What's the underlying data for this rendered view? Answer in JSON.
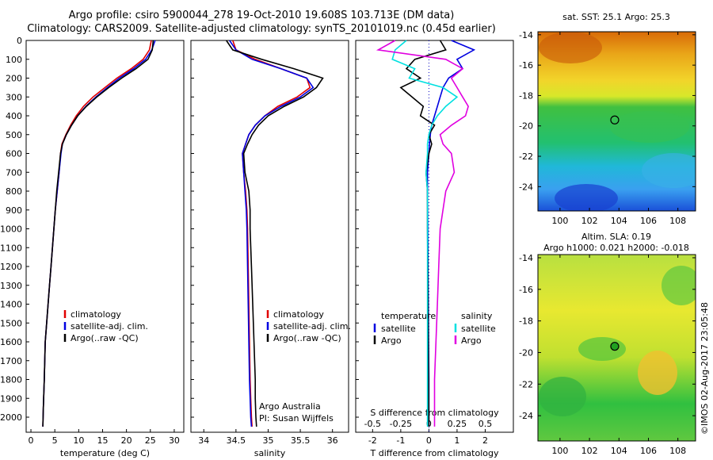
{
  "header": {
    "line1": "Argo profile: csiro 5900044_278 19-Oct-2010 19.608S 103.713E (DM data)",
    "line2": "Climatology: CARS2009. Satellite-adjusted climatology: synTS_20101019.nc (0.45d earlier)"
  },
  "colors": {
    "climatology": "#e00000",
    "satellite": "#0000e0",
    "argo": "#000000",
    "sat_salinity": "#00e0e0",
    "argo_salinity": "#e000e0"
  },
  "chart_data": [
    {
      "type": "line",
      "id": "temperature",
      "xlabel": "temperature (deg C)",
      "ylabel": "",
      "xlim": [
        -1,
        32
      ],
      "ylim": [
        2080,
        0
      ],
      "xticks": [
        0,
        5,
        10,
        15,
        20,
        25,
        30
      ],
      "yticks": [
        0,
        100,
        200,
        300,
        400,
        500,
        600,
        700,
        800,
        900,
        1000,
        1100,
        1200,
        1300,
        1400,
        1500,
        1600,
        1700,
        1800,
        1900,
        2000
      ],
      "series": [
        {
          "name": "climatology",
          "color": "#e00000",
          "x": [
            25.2,
            24.8,
            23.5,
            21,
            18,
            15.5,
            13,
            11,
            9.5,
            8.3,
            7.3,
            6.5,
            6.2,
            5.9,
            5.5,
            5.1,
            4.8,
            4.5,
            4.2,
            3.9,
            3.6,
            3.3,
            3.0,
            2.8,
            2.6,
            2.5
          ],
          "y": [
            0,
            50,
            100,
            150,
            200,
            250,
            300,
            350,
            400,
            450,
            500,
            550,
            600,
            700,
            800,
            900,
            1000,
            1100,
            1200,
            1300,
            1400,
            1500,
            1600,
            1800,
            1950,
            2050
          ]
        },
        {
          "name": "satellite-adj. clim.",
          "color": "#0000e0",
          "x": [
            26,
            25.3,
            24,
            21.5,
            18.5,
            16,
            13.6,
            11.5,
            9.8,
            8.5,
            7.4,
            6.6,
            6.3,
            5.9,
            5.5,
            5.1,
            4.8,
            4.5,
            4.2,
            3.9,
            3.6,
            3.3,
            3.0,
            2.8,
            2.6,
            2.5
          ],
          "y": [
            0,
            50,
            100,
            150,
            200,
            250,
            300,
            350,
            400,
            450,
            500,
            550,
            600,
            700,
            800,
            900,
            1000,
            1100,
            1200,
            1300,
            1400,
            1500,
            1600,
            1800,
            1950,
            2050
          ]
        },
        {
          "name": "Argo(..raw -QC)",
          "color": "#000000",
          "x": [
            25.6,
            25.4,
            24.5,
            22,
            19,
            16.3,
            13.8,
            11.6,
            9.8,
            8.5,
            7.4,
            6.6,
            6.2,
            5.8,
            5.4,
            5.1,
            4.8,
            4.5,
            4.2,
            3.9,
            3.6,
            3.3,
            3.0,
            2.8,
            2.6,
            2.5
          ],
          "y": [
            0,
            50,
            100,
            150,
            200,
            250,
            300,
            350,
            400,
            450,
            500,
            550,
            600,
            700,
            800,
            900,
            1000,
            1100,
            1200,
            1300,
            1400,
            1500,
            1600,
            1800,
            1950,
            2050
          ]
        }
      ],
      "legend": [
        "climatology",
        "satellite-adj. clim.",
        "Argo(..raw -QC)"
      ]
    },
    {
      "type": "line",
      "id": "salinity",
      "xlabel": "salinity",
      "xlim": [
        33.8,
        36.25
      ],
      "ylim": [
        2080,
        0
      ],
      "xticks": [
        34,
        34.5,
        35,
        35.5,
        36
      ],
      "series": [
        {
          "name": "climatology",
          "color": "#e00000",
          "x": [
            34.45,
            34.5,
            34.8,
            35.2,
            35.6,
            35.65,
            35.45,
            35.15,
            34.95,
            34.8,
            34.7,
            34.65,
            34.6,
            34.62,
            34.65,
            34.67,
            34.68,
            34.69,
            34.7,
            34.71,
            34.72,
            34.73,
            34.74,
            34.75
          ],
          "y": [
            0,
            50,
            100,
            150,
            200,
            250,
            300,
            350,
            400,
            450,
            500,
            550,
            600,
            700,
            800,
            900,
            1000,
            1200,
            1400,
            1600,
            1800,
            1900,
            2000,
            2050
          ]
        },
        {
          "name": "satellite-adj. clim.",
          "color": "#0000e0",
          "x": [
            34.4,
            34.5,
            34.75,
            35.2,
            35.6,
            35.7,
            35.5,
            35.2,
            34.95,
            34.8,
            34.7,
            34.65,
            34.6,
            34.62,
            34.64,
            34.66,
            34.67,
            34.68,
            34.69,
            34.7,
            34.71,
            34.72,
            34.73,
            34.74
          ],
          "y": [
            0,
            50,
            100,
            150,
            200,
            250,
            300,
            350,
            400,
            450,
            500,
            550,
            600,
            700,
            800,
            900,
            1000,
            1200,
            1400,
            1600,
            1800,
            1900,
            2000,
            2050
          ]
        },
        {
          "name": "Argo(..raw -QC)",
          "color": "#000000",
          "x": [
            34.35,
            34.45,
            34.9,
            35.4,
            35.85,
            35.75,
            35.55,
            35.25,
            35.0,
            34.85,
            34.75,
            34.68,
            34.62,
            34.64,
            34.7,
            34.72,
            34.72,
            34.74,
            34.76,
            34.78,
            34.8,
            34.8,
            34.81,
            34.82
          ],
          "y": [
            0,
            50,
            100,
            150,
            200,
            250,
            300,
            350,
            400,
            450,
            500,
            550,
            600,
            700,
            800,
            900,
            1000,
            1200,
            1400,
            1600,
            1800,
            1900,
            2000,
            2050
          ]
        }
      ],
      "legend": [
        "climatology",
        "satellite-adj. clim.",
        "Argo(..raw -QC)"
      ],
      "annotation": [
        "Argo Australia",
        "PI: Susan Wijffels"
      ]
    },
    {
      "type": "line",
      "id": "difference",
      "xlabel": "T difference from climatology",
      "xlabel_top": "S difference from climatology",
      "xlim": [
        -2.6,
        3.0
      ],
      "ylim": [
        2080,
        0
      ],
      "xticks": [
        -2,
        -1,
        0,
        1,
        2
      ],
      "s_ticks": [
        {
          "label": "-0.5",
          "t": -2
        },
        {
          "label": "-0.25",
          "t": -1
        },
        {
          "label": "0",
          "t": 0
        },
        {
          "label": "0.25",
          "t": 1
        },
        {
          "label": "0.5",
          "t": 2
        }
      ],
      "series": [
        {
          "name": "temperature satellite",
          "color": "#0000e0",
          "x": [
            0.8,
            1.6,
            1.0,
            1.2,
            0.7,
            0.5,
            0.4,
            0.3,
            0.2,
            0.1,
            0.05,
            0.02,
            0.0,
            -0.05,
            -0.05,
            -0.04,
            -0.03,
            -0.02,
            -0.01,
            0.0,
            0.0
          ],
          "y": [
            0,
            50,
            100,
            150,
            200,
            250,
            300,
            350,
            400,
            450,
            500,
            550,
            600,
            700,
            800,
            1000,
            1200,
            1400,
            1600,
            1800,
            2050
          ]
        },
        {
          "name": "temperature Argo",
          "color": "#000000",
          "x": [
            0.4,
            0.6,
            -0.5,
            -0.8,
            -0.3,
            -1.0,
            -0.6,
            -0.2,
            -0.3,
            0.2,
            0.0,
            0.1,
            0.0,
            -0.1,
            -0.05,
            -0.05,
            -0.04,
            -0.03,
            -0.02,
            -0.01,
            0.0
          ],
          "y": [
            0,
            50,
            100,
            150,
            200,
            250,
            300,
            350,
            400,
            450,
            500,
            550,
            600,
            700,
            800,
            1000,
            1200,
            1400,
            1600,
            1800,
            2050
          ]
        },
        {
          "name": "salinity satellite",
          "color": "#00e0e0",
          "x": [
            -0.8,
            -1.2,
            -1.3,
            -0.5,
            -0.7,
            0.5,
            1.0,
            0.6,
            0.3,
            0.1,
            0.0,
            -0.05,
            -0.05,
            -0.1,
            -0.05,
            -0.05,
            -0.05,
            -0.05,
            -0.05,
            -0.05,
            -0.05
          ],
          "y": [
            0,
            50,
            100,
            150,
            200,
            250,
            300,
            350,
            400,
            450,
            500,
            550,
            600,
            700,
            800,
            1000,
            1200,
            1400,
            1600,
            1800,
            2050
          ]
        },
        {
          "name": "salinity Argo",
          "color": "#e000e0",
          "x": [
            -1.2,
            -1.8,
            0.6,
            1.2,
            0.8,
            1.0,
            1.2,
            1.4,
            1.3,
            0.8,
            0.4,
            0.5,
            0.8,
            0.9,
            0.6,
            0.4,
            0.35,
            0.3,
            0.25,
            0.2,
            0.2
          ],
          "y": [
            0,
            50,
            100,
            150,
            200,
            250,
            300,
            350,
            400,
            450,
            500,
            550,
            600,
            700,
            800,
            1000,
            1200,
            1400,
            1600,
            1800,
            2050
          ]
        }
      ],
      "legend_temperature": {
        "heading": "temperature",
        "items": [
          "satellite",
          "Argo"
        ]
      },
      "legend_salinity": {
        "heading": "salinity",
        "items": [
          "satellite",
          "Argo"
        ]
      }
    },
    {
      "type": "heatmap",
      "id": "sst-map",
      "title": "sat. SST: 25.1  Argo: 25.3",
      "xlim": [
        98.5,
        109.2
      ],
      "ylim": [
        -25.6,
        -13.8
      ],
      "xticks": [
        100,
        102,
        104,
        106,
        108
      ],
      "yticks": [
        -14,
        -16,
        -18,
        -20,
        -22,
        -24
      ],
      "marker": {
        "lon": 103.713,
        "lat": -19.608
      }
    },
    {
      "type": "heatmap",
      "id": "sla-map",
      "title_line1": "Altim. SLA: 0.19",
      "title_line2": "Argo h1000: 0.021 h2000: -0.018",
      "xlim": [
        98.5,
        109.2
      ],
      "ylim": [
        -25.6,
        -13.8
      ],
      "xticks": [
        100,
        102,
        104,
        106,
        108
      ],
      "yticks": [
        -14,
        -16,
        -18,
        -20,
        -22,
        -24
      ],
      "marker": {
        "lon": 103.713,
        "lat": -19.608
      }
    }
  ],
  "credit": "©IMOS 02-Aug-2017 23:05:48"
}
